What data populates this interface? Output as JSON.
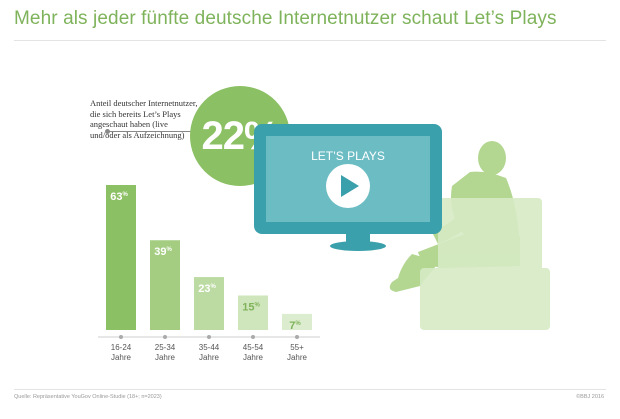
{
  "title": "Mehr als jeder fünfte deutsche Internetnutzer schaut Let’s Plays",
  "share": {
    "text": "Anteil deutscher Internetnutzer, die sich bereits Let’s Plays angeschaut haben (live und/oder als Aufzeichnung)",
    "value": "22%"
  },
  "screen_label": "LET’S PLAYS",
  "colors": {
    "title": "#7fb35b",
    "teal": "#3aa0ab",
    "green": "#8cc064",
    "bars": [
      "#8cc064",
      "#a4cd82",
      "#bcdba2",
      "#cfe5bc",
      "#dcecce"
    ]
  },
  "chart_data": {
    "type": "bar",
    "categories": [
      "16-24 Jahre",
      "25-34 Jahre",
      "35-44 Jahre",
      "45-54 Jahre",
      "55+ Jahre"
    ],
    "category_lines": [
      [
        "16-24",
        "Jahre"
      ],
      [
        "25-34",
        "Jahre"
      ],
      [
        "35-44",
        "Jahre"
      ],
      [
        "45-54",
        "Jahre"
      ],
      [
        "55+",
        "Jahre"
      ]
    ],
    "values": [
      63,
      39,
      23,
      15,
      7
    ],
    "value_labels": [
      "63",
      "39",
      "23",
      "15",
      "7"
    ],
    "unit": "%",
    "ylim": [
      0,
      70
    ],
    "grid": false
  },
  "footer": {
    "source": "Quelle: Repräsentative YouGov Online-Studie (18+; n=2023)",
    "copyright": "©BBJ 2016"
  }
}
